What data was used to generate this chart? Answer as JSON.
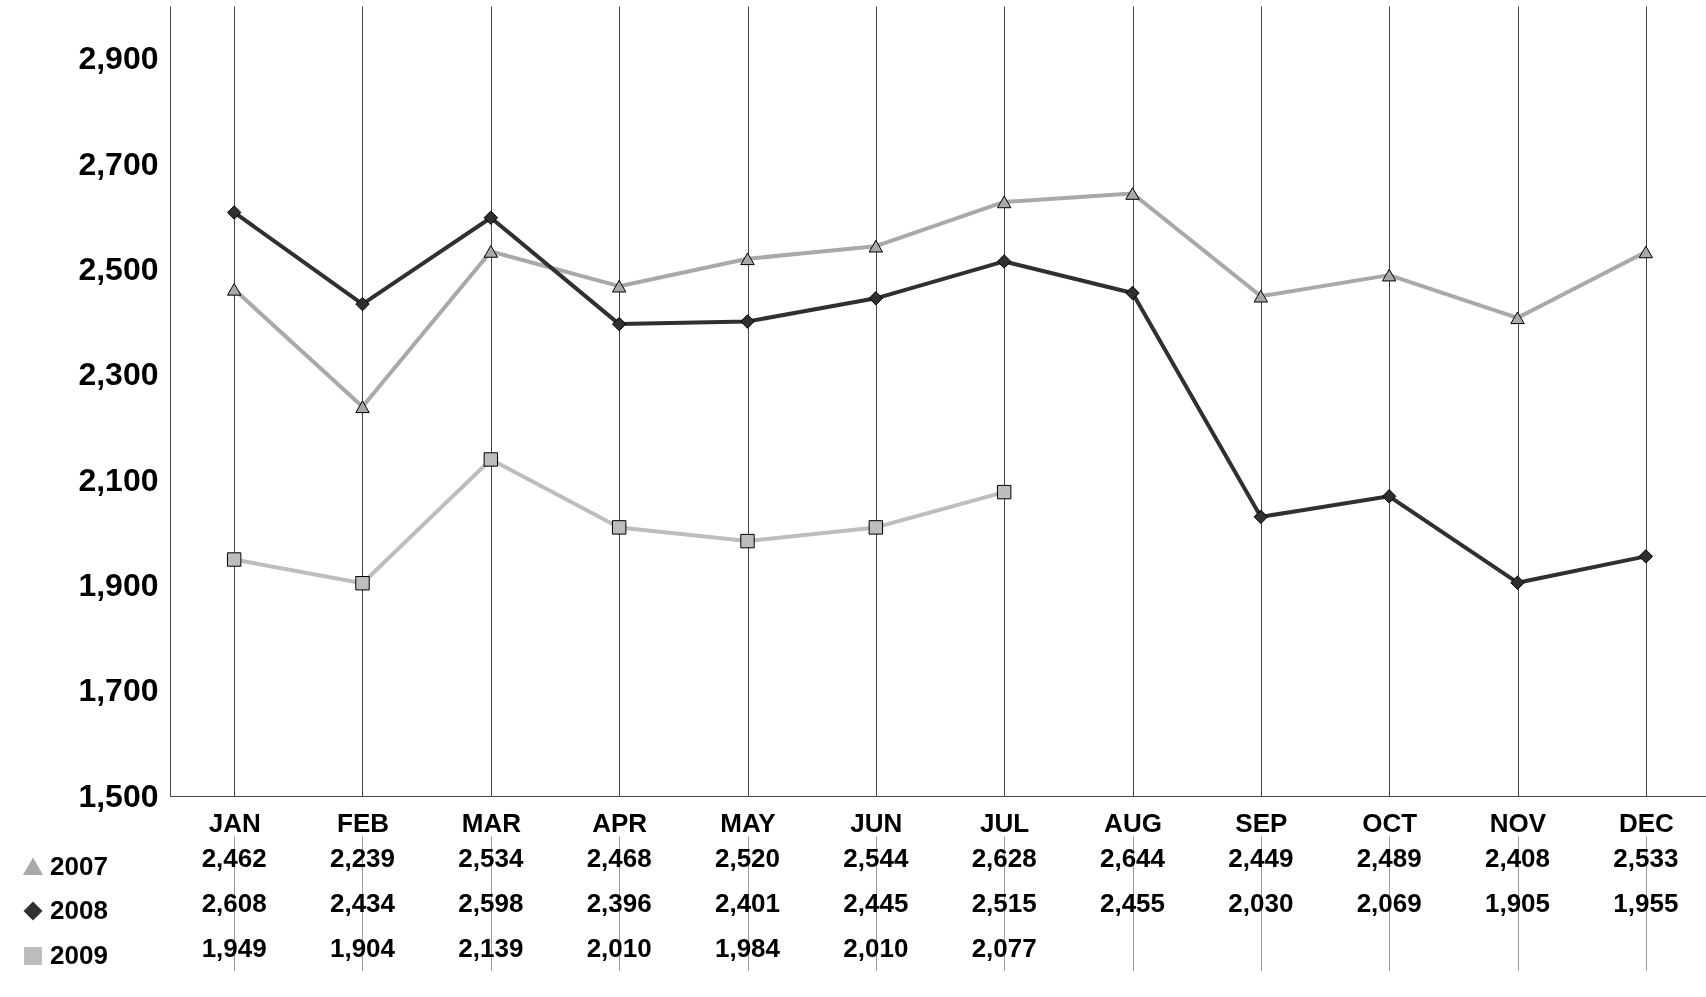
{
  "chart_data": {
    "type": "line",
    "categories": [
      "JAN",
      "FEB",
      "MAR",
      "APR",
      "MAY",
      "JUN",
      "JUL",
      "AUG",
      "SEP",
      "OCT",
      "NOV",
      "DEC"
    ],
    "series": [
      {
        "name": "2007",
        "color": "#a9a9a9",
        "marker": "triangle",
        "values": [
          2462,
          2239,
          2534,
          2468,
          2520,
          2544,
          2628,
          2644,
          2449,
          2489,
          2408,
          2533
        ],
        "value_labels": [
          "2,462",
          "2,239",
          "2,534",
          "2,468",
          "2,520",
          "2,544",
          "2,628",
          "2,644",
          "2,449",
          "2,489",
          "2,408",
          "2,533"
        ]
      },
      {
        "name": "2008",
        "color": "#303030",
        "marker": "diamond",
        "values": [
          2608,
          2434,
          2598,
          2396,
          2401,
          2445,
          2515,
          2455,
          2030,
          2069,
          1905,
          1955
        ],
        "value_labels": [
          "2,608",
          "2,434",
          "2,598",
          "2,396",
          "2,401",
          "2,445",
          "2,515",
          "2,455",
          "2,030",
          "2,069",
          "1,905",
          "1,955"
        ]
      },
      {
        "name": "2009",
        "color": "#bdbdbd",
        "marker": "square",
        "values": [
          1949,
          1904,
          2139,
          2010,
          1984,
          2010,
          2077,
          null,
          null,
          null,
          null,
          null
        ],
        "value_labels": [
          "1,949",
          "1,904",
          "2,139",
          "2,010",
          "1,984",
          "2,010",
          "2,077",
          null,
          null,
          null,
          null,
          null
        ]
      }
    ],
    "ylim": [
      1500,
      3000
    ],
    "yticks": [
      {
        "value": 1500,
        "label": "1,500"
      },
      {
        "value": 1700,
        "label": "1,700"
      },
      {
        "value": 1900,
        "label": "1,900"
      },
      {
        "value": 2100,
        "label": "2,100"
      },
      {
        "value": 2300,
        "label": "2,300"
      },
      {
        "value": 2500,
        "label": "2,500"
      },
      {
        "value": 2700,
        "label": "2,700"
      },
      {
        "value": 2900,
        "label": "2,900"
      }
    ],
    "grid": "x",
    "legend": "bottom"
  }
}
